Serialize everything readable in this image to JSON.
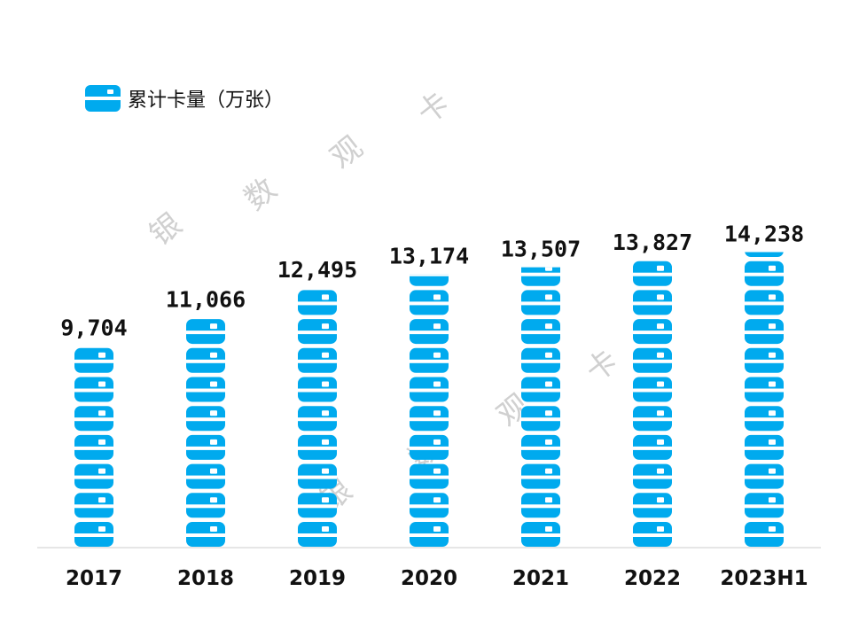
{
  "legend": {
    "label": "累计卡量（万张）",
    "icon": "bank-card-icon"
  },
  "watermark": {
    "chars": [
      "银",
      "数",
      "观",
      "卡"
    ]
  },
  "colors": {
    "accent": "#00aaee",
    "axis": "#cccccc",
    "text": "#111111"
  },
  "chart_data": {
    "type": "bar",
    "categories": [
      "2017",
      "2018",
      "2019",
      "2020",
      "2021",
      "2022",
      "2023H1"
    ],
    "values": [
      9704,
      11066,
      12495,
      13174,
      13507,
      13827,
      14238
    ],
    "value_labels": [
      "9,704",
      "11,066",
      "12,495",
      "13,174",
      "13,507",
      "13,827",
      "14,238"
    ],
    "series": [
      {
        "name": "累计卡量（万张）",
        "values": [
          9704,
          11066,
          12495,
          13174,
          13507,
          13827,
          14238
        ]
      }
    ],
    "title": "",
    "xlabel": "",
    "ylabel": "",
    "ylim": [
      0,
      15000
    ],
    "grid": false,
    "legend_position": "top-left",
    "bar_style": "stacked-card-icons"
  }
}
